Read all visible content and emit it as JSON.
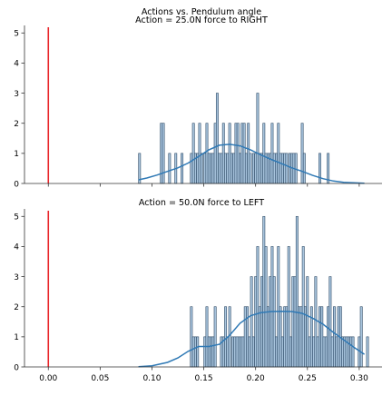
{
  "figure": {
    "suptitle": "Actions vs. Pendulum angle",
    "colors": {
      "bar_fill": "#a8c4dd",
      "bar_edge": "#2d4a66",
      "kde_line": "#2f79b5",
      "reference_line": "#e8252a",
      "axis": "#333333"
    }
  },
  "chart_data": [
    {
      "type": "bar",
      "title": "Action = 25.0N force to RIGHT",
      "xlabel": "",
      "ylabel": "",
      "xlim": [
        -0.023,
        0.322
      ],
      "ylim": [
        0,
        5.25
      ],
      "xticks": [],
      "yticks": [
        0,
        1,
        2,
        3,
        4,
        5
      ],
      "ytick_labels": [
        "0",
        "1",
        "2",
        "3",
        "4",
        "5"
      ],
      "grid": false,
      "reference_x": 0.0,
      "bin_width": 0.002,
      "bins_x": [
        0.087,
        0.108,
        0.11,
        0.116,
        0.122,
        0.128,
        0.137,
        0.139,
        0.141,
        0.143,
        0.145,
        0.147,
        0.15,
        0.152,
        0.154,
        0.156,
        0.158,
        0.16,
        0.162,
        0.164,
        0.166,
        0.168,
        0.17,
        0.172,
        0.174,
        0.176,
        0.178,
        0.18,
        0.182,
        0.184,
        0.186,
        0.188,
        0.19,
        0.192,
        0.194,
        0.197,
        0.199,
        0.201,
        0.203,
        0.205,
        0.207,
        0.209,
        0.211,
        0.213,
        0.215,
        0.217,
        0.219,
        0.221,
        0.223,
        0.225,
        0.227,
        0.229,
        0.232,
        0.234,
        0.236,
        0.238,
        0.244,
        0.246,
        0.261,
        0.269
      ],
      "bins_count": [
        1,
        2,
        2,
        1,
        1,
        1,
        1,
        2,
        1,
        1,
        2,
        1,
        1,
        2,
        1,
        1,
        1,
        2,
        3,
        1,
        1,
        2,
        1,
        1,
        2,
        1,
        1,
        2,
        2,
        1,
        2,
        2,
        1,
        2,
        1,
        1,
        1,
        3,
        1,
        1,
        2,
        1,
        1,
        1,
        2,
        1,
        1,
        2,
        1,
        1,
        1,
        1,
        1,
        1,
        1,
        1,
        2,
        1,
        1,
        1
      ],
      "kde_x": [
        0.087,
        0.095,
        0.105,
        0.115,
        0.125,
        0.135,
        0.145,
        0.155,
        0.165,
        0.175,
        0.185,
        0.195,
        0.205,
        0.215,
        0.225,
        0.235,
        0.245,
        0.255,
        0.265,
        0.275,
        0.285,
        0.295,
        0.305
      ],
      "kde_y": [
        0.12,
        0.18,
        0.28,
        0.4,
        0.52,
        0.68,
        0.9,
        1.12,
        1.27,
        1.3,
        1.25,
        1.12,
        0.95,
        0.8,
        0.66,
        0.52,
        0.4,
        0.27,
        0.16,
        0.08,
        0.04,
        0.02,
        0.01
      ]
    },
    {
      "type": "bar",
      "title": "Action = 50.0N force to LEFT",
      "xlabel": "",
      "ylabel": "",
      "xlim": [
        -0.023,
        0.322
      ],
      "ylim": [
        0,
        5.25
      ],
      "xticks": [
        0.0,
        0.05,
        0.1,
        0.15,
        0.2,
        0.25,
        0.3
      ],
      "xtick_labels": [
        "0.00",
        "0.05",
        "0.10",
        "0.15",
        "0.20",
        "0.25",
        "0.30"
      ],
      "yticks": [
        0,
        1,
        2,
        3,
        4,
        5
      ],
      "ytick_labels": [
        "0",
        "1",
        "2",
        "3",
        "4",
        "5"
      ],
      "grid": false,
      "reference_x": 0.0,
      "bin_width": 0.002,
      "bins_x": [
        0.137,
        0.139,
        0.141,
        0.143,
        0.15,
        0.152,
        0.154,
        0.156,
        0.158,
        0.16,
        0.166,
        0.168,
        0.17,
        0.172,
        0.174,
        0.177,
        0.179,
        0.181,
        0.183,
        0.185,
        0.187,
        0.189,
        0.191,
        0.193,
        0.195,
        0.197,
        0.199,
        0.201,
        0.203,
        0.205,
        0.207,
        0.209,
        0.211,
        0.213,
        0.215,
        0.217,
        0.219,
        0.221,
        0.223,
        0.225,
        0.227,
        0.229,
        0.231,
        0.233,
        0.235,
        0.237,
        0.239,
        0.241,
        0.243,
        0.245,
        0.247,
        0.249,
        0.251,
        0.253,
        0.255,
        0.257,
        0.259,
        0.261,
        0.263,
        0.265,
        0.267,
        0.269,
        0.271,
        0.273,
        0.275,
        0.277,
        0.279,
        0.281,
        0.283,
        0.285,
        0.287,
        0.289,
        0.291,
        0.293,
        0.299,
        0.301,
        0.307
      ],
      "bins_count": [
        2,
        1,
        1,
        1,
        1,
        2,
        1,
        1,
        1,
        2,
        1,
        1,
        2,
        1,
        2,
        1,
        1,
        1,
        1,
        1,
        1,
        2,
        2,
        1,
        3,
        1,
        3,
        4,
        2,
        3,
        5,
        4,
        2,
        3,
        4,
        3,
        1,
        4,
        2,
        1,
        2,
        2,
        4,
        1,
        3,
        3,
        5,
        2,
        2,
        4,
        2,
        3,
        1,
        2,
        1,
        3,
        1,
        2,
        2,
        1,
        1,
        2,
        3,
        1,
        2,
        1,
        2,
        2,
        1,
        1,
        1,
        1,
        1,
        1,
        1,
        2,
        1
      ],
      "kde_x": [
        0.087,
        0.1,
        0.115,
        0.125,
        0.135,
        0.145,
        0.155,
        0.165,
        0.175,
        0.185,
        0.195,
        0.205,
        0.215,
        0.225,
        0.235,
        0.245,
        0.255,
        0.265,
        0.275,
        0.285,
        0.295,
        0.305
      ],
      "kde_y": [
        0.01,
        0.04,
        0.15,
        0.3,
        0.52,
        0.68,
        0.68,
        0.75,
        1.05,
        1.45,
        1.7,
        1.8,
        1.84,
        1.85,
        1.84,
        1.78,
        1.62,
        1.42,
        1.15,
        0.9,
        0.65,
        0.42
      ]
    }
  ]
}
